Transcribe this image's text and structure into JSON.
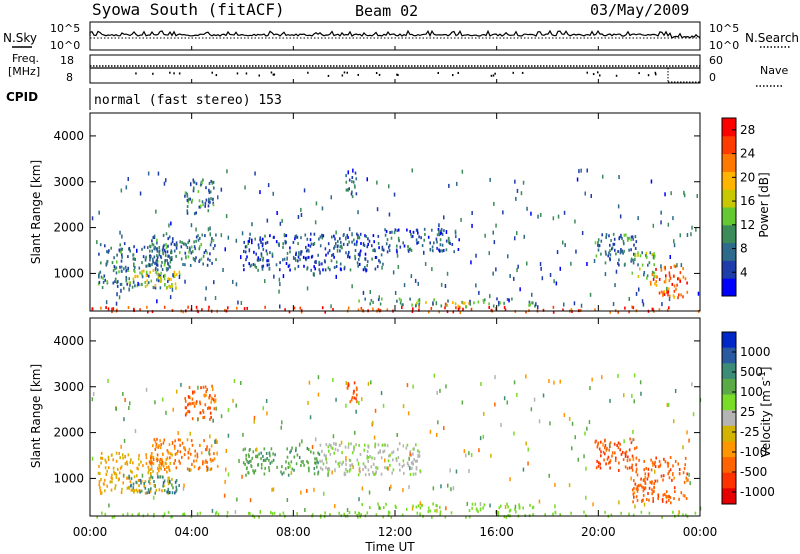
{
  "header": {
    "station": "Syowa South (fitACF)",
    "beam": "Beam 02",
    "date": "03/May/2009"
  },
  "noise_panel": {
    "left_label": "N.Sky",
    "right_label": "N.Search",
    "ticks_left": [
      "10^5",
      "10^0"
    ],
    "ticks_right": [
      "10^5",
      "10^0"
    ]
  },
  "freq_panel": {
    "left_label_line1": "Freq.",
    "left_label_line2": "[MHz]",
    "ticks_left": [
      "18",
      "8"
    ],
    "right_label": "Nave",
    "ticks_right": [
      "60",
      "0"
    ]
  },
  "cpid": {
    "label": "CPID",
    "mode": "normal (fast stereo) 153"
  },
  "axes": {
    "ylabel": "Slant Range [km]",
    "xlabel": "Time UT",
    "y_ticks": [
      "4000",
      "3000",
      "2000",
      "1000"
    ],
    "x_ticks": [
      "00:00",
      "04:00",
      "08:00",
      "12:00",
      "16:00",
      "20:00",
      "00:00"
    ]
  },
  "colors": {
    "power_scale": [
      "#0000ff",
      "#1e3caa",
      "#2d6a8c",
      "#3c8c5a",
      "#64c832",
      "#c8c800",
      "#ffb400",
      "#ff7800",
      "#ff3c00",
      "#ff0000"
    ],
    "velocity_scale": [
      "#0028c8",
      "#2a5aa0",
      "#3c8c78",
      "#5aaa46",
      "#78dc28",
      "#b4b4b4",
      "#d2b400",
      "#ff9600",
      "#ff6400",
      "#ff3200",
      "#e60000"
    ]
  },
  "chart_data": [
    {
      "type": "heatmap",
      "name": "Power",
      "xlabel": "Time UT",
      "ylabel": "Slant Range [km]",
      "xlim": [
        0,
        24
      ],
      "ylim": [
        180,
        4500
      ],
      "colorbar": {
        "label": "Power [dB]",
        "ticks": [
          "4",
          "8",
          "12",
          "16",
          "20",
          "24",
          "28"
        ],
        "range": [
          0,
          30
        ]
      },
      "regions": [
        {
          "t0": 0.3,
          "t1": 3.2,
          "r0": 700,
          "r1": 1700,
          "v": 8
        },
        {
          "t0": 1.5,
          "t1": 3.5,
          "r0": 700,
          "r1": 1100,
          "v": 16
        },
        {
          "t0": 2.3,
          "t1": 5.0,
          "r0": 1200,
          "r1": 1900,
          "v": 8
        },
        {
          "t0": 3.7,
          "t1": 4.9,
          "r0": 2300,
          "r1": 3100,
          "v": 8
        },
        {
          "t0": 6.0,
          "t1": 11.5,
          "r0": 1100,
          "r1": 1900,
          "v": 6
        },
        {
          "t0": 10.0,
          "t1": 10.5,
          "r0": 2700,
          "r1": 3300,
          "v": 8
        },
        {
          "t0": 11.5,
          "t1": 14.5,
          "r0": 1500,
          "r1": 2000,
          "v": 6
        },
        {
          "t0": 10.5,
          "t1": 17.5,
          "r0": 300,
          "r1": 480,
          "v": 10
        },
        {
          "t0": 12.5,
          "t1": 15.0,
          "r0": 280,
          "r1": 400,
          "v": 20
        },
        {
          "t0": 19.8,
          "t1": 21.5,
          "r0": 1200,
          "r1": 1900,
          "v": 8
        },
        {
          "t0": 21.3,
          "t1": 22.2,
          "r0": 900,
          "r1": 1500,
          "v": 12
        },
        {
          "t0": 22.0,
          "t1": 23.5,
          "r0": 500,
          "r1": 1200,
          "v": 24
        },
        {
          "t0": 0.0,
          "t1": 24.0,
          "r0": 180,
          "r1": 300,
          "v": 26
        }
      ]
    },
    {
      "type": "heatmap",
      "name": "Velocity",
      "xlabel": "Time UT",
      "ylabel": "Slant Range [km]",
      "xlim": [
        0,
        24
      ],
      "ylim": [
        180,
        4500
      ],
      "colorbar": {
        "label": "Velocity [m s^-1]",
        "ticks": [
          "1000",
          "500",
          "100",
          "25",
          "-25",
          "-100",
          "-500",
          "-1000"
        ]
      },
      "regions": [
        {
          "t0": 0.3,
          "t1": 3.2,
          "r0": 700,
          "r1": 1600,
          "v": -100
        },
        {
          "t0": 1.5,
          "t1": 3.5,
          "r0": 700,
          "r1": 1100,
          "v": 400
        },
        {
          "t0": 2.3,
          "t1": 5.0,
          "r0": 1200,
          "r1": 1900,
          "v": -300
        },
        {
          "t0": 3.7,
          "t1": 4.9,
          "r0": 2300,
          "r1": 3100,
          "v": -400
        },
        {
          "t0": 6.0,
          "t1": 9.0,
          "r0": 1100,
          "r1": 1700,
          "v": 200
        },
        {
          "t0": 9.0,
          "t1": 13.0,
          "r0": 1100,
          "r1": 1800,
          "v": 10
        },
        {
          "t0": 10.0,
          "t1": 10.5,
          "r0": 2700,
          "r1": 3300,
          "v": -400
        },
        {
          "t0": 10.5,
          "t1": 17.5,
          "r0": 300,
          "r1": 480,
          "v": 60
        },
        {
          "t0": 19.8,
          "t1": 21.5,
          "r0": 1200,
          "r1": 1900,
          "v": -500
        },
        {
          "t0": 21.3,
          "t1": 23.5,
          "r0": 500,
          "r1": 1500,
          "v": -400
        },
        {
          "t0": 0.0,
          "t1": 24.0,
          "r0": 180,
          "r1": 300,
          "v": 60
        }
      ]
    }
  ]
}
